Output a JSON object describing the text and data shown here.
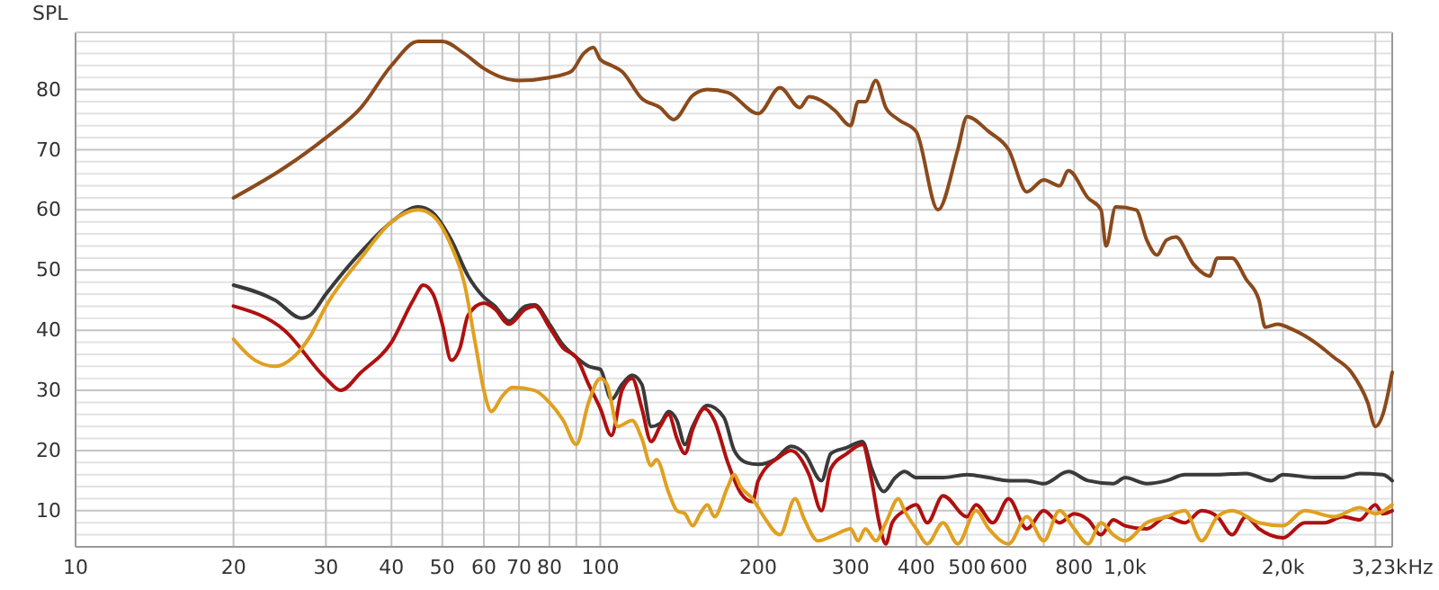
{
  "chart_data": {
    "type": "line",
    "ylabel": "SPL",
    "log": "x",
    "grid": true,
    "xlabel": "Hz",
    "marker": "none",
    "line_style": "solid",
    "xlim": [
      10,
      3230
    ],
    "ylim": [
      4,
      89.5
    ],
    "xticks": [
      10,
      20,
      30,
      40,
      50,
      60,
      70,
      80,
      {
        "value": 90,
        "label": null
      },
      100,
      200,
      300,
      400,
      500,
      600,
      {
        "value": 700,
        "label": null
      },
      800,
      {
        "value": 900,
        "label": null
      },
      {
        "value": 1000,
        "label": "1,0k"
      },
      {
        "value": 2000,
        "label": "2,0k"
      },
      {
        "value": 3000,
        "label": null
      },
      {
        "value": 3230,
        "label": "3,23k"
      }
    ],
    "yticks": [
      {
        "value": 6,
        "label": null
      },
      {
        "value": 8,
        "label": null
      },
      10,
      {
        "value": 12,
        "label": null
      },
      {
        "value": 14,
        "label": null
      },
      {
        "value": 16,
        "label": null
      },
      {
        "value": 18,
        "label": null
      },
      20,
      {
        "value": 22,
        "label": null
      },
      {
        "value": 24,
        "label": null
      },
      {
        "value": 26,
        "label": null
      },
      {
        "value": 28,
        "label": null
      },
      30,
      {
        "value": 32,
        "label": null
      },
      {
        "value": 34,
        "label": null
      },
      {
        "value": 36,
        "label": null
      },
      {
        "value": 38,
        "label": null
      },
      40,
      {
        "value": 42,
        "label": null
      },
      {
        "value": 44,
        "label": null
      },
      {
        "value": 46,
        "label": null
      },
      {
        "value": 48,
        "label": null
      },
      50,
      {
        "value": 52,
        "label": null
      },
      {
        "value": 54,
        "label": null
      },
      {
        "value": 56,
        "label": null
      },
      {
        "value": 58,
        "label": null
      },
      60,
      {
        "value": 62,
        "label": null
      },
      {
        "value": 64,
        "label": null
      },
      {
        "value": 66,
        "label": null
      },
      {
        "value": 68,
        "label": null
      },
      70,
      {
        "value": 72,
        "label": null
      },
      {
        "value": 74,
        "label": null
      },
      {
        "value": 76,
        "label": null
      },
      {
        "value": 78,
        "label": null
      },
      80,
      {
        "value": 82,
        "label": null
      },
      {
        "value": 84,
        "label": null
      },
      {
        "value": 86,
        "label": null
      },
      {
        "value": 88,
        "label": null
      }
    ],
    "series": [
      {
        "color": "#8b4a1c",
        "x": [
          20,
          25,
          30,
          35,
          40,
          45,
          50,
          55,
          60,
          65,
          70,
          80,
          88,
          93,
          97,
          100,
          105,
          110,
          120,
          130,
          138,
          150,
          160,
          175,
          200,
          220,
          240,
          250,
          270,
          280,
          300,
          310,
          320,
          335,
          350,
          370,
          400,
          440,
          480,
          500,
          550,
          600,
          650,
          700,
          750,
          780,
          850,
          900,
          920,
          960,
          1050,
          1100,
          1150,
          1200,
          1250,
          1350,
          1450,
          1500,
          1600,
          1700,
          1800,
          1850,
          1950,
          2100,
          2300,
          2500,
          2700,
          2900,
          3000,
          3100,
          3230
        ],
        "values": [
          62,
          67,
          72,
          77,
          84,
          88,
          88,
          86,
          83.5,
          82,
          81.5,
          82,
          83,
          86,
          87,
          85,
          84,
          83,
          78.5,
          77,
          75,
          79,
          80,
          79.5,
          76,
          80.3,
          77,
          78.8,
          77.6,
          76.5,
          74,
          78,
          78,
          81.5,
          77,
          75,
          73,
          60,
          70,
          75.5,
          73,
          70,
          63,
          65,
          64,
          66.5,
          62,
          60,
          54,
          60.5,
          60,
          55,
          52.5,
          55,
          55.5,
          51,
          49,
          52,
          52,
          48.5,
          45,
          40.5,
          41,
          40,
          38,
          35.5,
          33,
          28,
          24,
          26,
          33
        ]
      },
      {
        "color": "#3a3a3a",
        "x": [
          20,
          24,
          27,
          28,
          30,
          35,
          40,
          45,
          48,
          52,
          56,
          60,
          63,
          67,
          72,
          75,
          80,
          85,
          90,
          95,
          100,
          105,
          110,
          115,
          120,
          125,
          130,
          135,
          140,
          145,
          150,
          160,
          172,
          180,
          190,
          200,
          215,
          231,
          245,
          264,
          275,
          295,
          316,
          329,
          347,
          365,
          380,
          400,
          450,
          500,
          550,
          600,
          650,
          700,
          780,
          850,
          950,
          1000,
          1100,
          1200,
          1300,
          1500,
          1700,
          1900,
          2000,
          2300,
          2600,
          2800,
          3100,
          3230
        ],
        "values": [
          47.5,
          45,
          42,
          42.5,
          46,
          53,
          58,
          60.5,
          59.5,
          55,
          49,
          45.5,
          44,
          41.5,
          44,
          44.2,
          41,
          37.5,
          35.5,
          34,
          33.5,
          28.5,
          31,
          32.5,
          31,
          24,
          24.5,
          26.5,
          25,
          21,
          24,
          27.5,
          25.5,
          20,
          18,
          17.7,
          18.5,
          20.7,
          19.5,
          15,
          19.5,
          20.5,
          21.5,
          17,
          13.2,
          15.5,
          16.5,
          15.5,
          15.5,
          16,
          15.5,
          15,
          15,
          14.5,
          16.5,
          15,
          14.5,
          15.5,
          14.5,
          15,
          16,
          16,
          16.2,
          15,
          16,
          15.5,
          15.5,
          16.2,
          16,
          15
        ]
      },
      {
        "color": "#b01010",
        "x": [
          20,
          25,
          30,
          32,
          35,
          40,
          44,
          46,
          48,
          50,
          52,
          54,
          56,
          60,
          63,
          67,
          72,
          75,
          80,
          85,
          90,
          95,
          100,
          105,
          110,
          115,
          120,
          125,
          130,
          135,
          140,
          145,
          150,
          158,
          165,
          175,
          185,
          195,
          200,
          220,
          231,
          250,
          264,
          275,
          295,
          316,
          329,
          340,
          350,
          360,
          380,
          400,
          420,
          450,
          500,
          520,
          560,
          600,
          650,
          700,
          750,
          800,
          850,
          900,
          950,
          1000,
          1100,
          1200,
          1300,
          1400,
          1500,
          1600,
          1700,
          1800,
          2000,
          2200,
          2400,
          2600,
          2800,
          3000,
          3100,
          3230
        ],
        "values": [
          44,
          40,
          32,
          30,
          33,
          38,
          45,
          47.5,
          46,
          41,
          35,
          37,
          42.5,
          44.5,
          43.5,
          41,
          43.5,
          44,
          40.5,
          37,
          35.5,
          31,
          27,
          22.5,
          30,
          32,
          27,
          21.5,
          24,
          26,
          22,
          19.5,
          23.5,
          27,
          25,
          18,
          13,
          11.5,
          15,
          19,
          20,
          16,
          10,
          17,
          19.5,
          21,
          15,
          8,
          4.5,
          8,
          10,
          11,
          8,
          12.5,
          9,
          11,
          8,
          12,
          7,
          10,
          8,
          9.5,
          8.5,
          6,
          8.5,
          7.5,
          7,
          9,
          8,
          10,
          9,
          6,
          9,
          7,
          5.5,
          8,
          8,
          9,
          8.5,
          11,
          9.5,
          10
        ]
      },
      {
        "color": "#e0a020",
        "x": [
          20,
          22,
          24,
          26,
          28,
          30,
          35,
          40,
          45,
          48,
          52,
          55,
          58,
          60,
          62,
          65,
          68,
          75,
          80,
          85,
          90,
          95,
          100,
          103,
          108,
          115,
          120,
          125,
          128,
          135,
          140,
          145,
          150,
          155,
          160,
          165,
          175,
          180,
          185,
          195,
          205,
          220,
          235,
          245,
          260,
          280,
          300,
          310,
          320,
          335,
          350,
          370,
          380,
          400,
          420,
          450,
          480,
          520,
          550,
          600,
          650,
          700,
          750,
          800,
          850,
          900,
          950,
          1000,
          1100,
          1200,
          1300,
          1400,
          1500,
          1600,
          1800,
          2000,
          2200,
          2500,
          2800,
          3000,
          3230
        ],
        "values": [
          38.5,
          35,
          34,
          35.5,
          39,
          44,
          52,
          58,
          60,
          59,
          54,
          48,
          37,
          30,
          26.5,
          29,
          30.5,
          30,
          28,
          25,
          21,
          28,
          32,
          31,
          24,
          25,
          22,
          17.5,
          18.5,
          13,
          10,
          9.5,
          7.5,
          9.5,
          11,
          9,
          14,
          16,
          14,
          12,
          9,
          6,
          12,
          8.5,
          5,
          6,
          7,
          5,
          7,
          5,
          8,
          12,
          10,
          7,
          4.5,
          8,
          4.5,
          10,
          7,
          4.5,
          9,
          5,
          10,
          7,
          4.5,
          8,
          6,
          5,
          8,
          9,
          10,
          5,
          9,
          10,
          8,
          7.5,
          10,
          9,
          10.5,
          9.5,
          11
        ]
      }
    ]
  }
}
